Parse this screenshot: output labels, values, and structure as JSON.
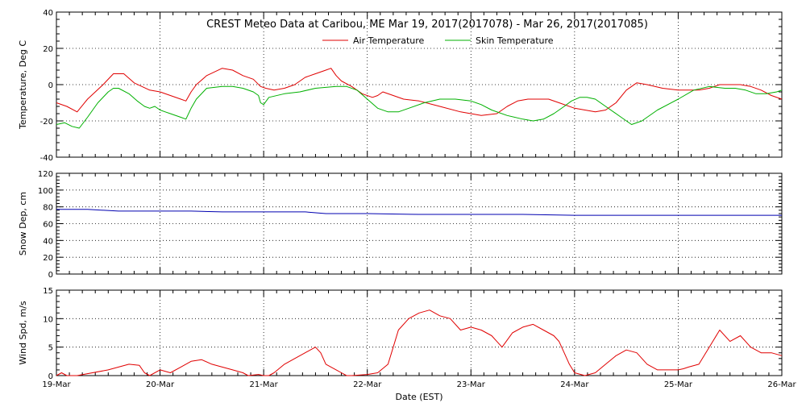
{
  "title": "CREST Meteo Data at Caribou, ME   Mar 19, 2017(2017078) - Mar 26, 2017(2017085)",
  "x_axis": {
    "label": "Date (EST)",
    "ticks": [
      "19-Mar",
      "20-Mar",
      "21-Mar",
      "22-Mar",
      "23-Mar",
      "24-Mar",
      "25-Mar",
      "26-Mar"
    ]
  },
  "colors": {
    "air": "#e00000",
    "skin": "#00b000",
    "snow": "#0000b0",
    "wind": "#e00000",
    "axis": "#000000"
  },
  "chart_data": [
    {
      "type": "line",
      "ylabel": "Temperature, Deg C",
      "ylim": [
        -40,
        40
      ],
      "yticks": [
        -40,
        -20,
        0,
        20,
        40
      ],
      "xlim": [
        0,
        7
      ],
      "grid": true,
      "legend": "top-center",
      "series": [
        {
          "name": "Air Temperature",
          "color": "#e00000",
          "x": [
            0,
            0.1,
            0.2,
            0.3,
            0.45,
            0.55,
            0.65,
            0.75,
            0.9,
            1.0,
            1.1,
            1.2,
            1.25,
            1.3,
            1.35,
            1.45,
            1.6,
            1.7,
            1.8,
            1.9,
            1.97,
            2.02,
            2.1,
            2.2,
            2.3,
            2.4,
            2.5,
            2.6,
            2.65,
            2.7,
            2.75,
            2.85,
            2.95,
            3.05,
            3.1,
            3.15,
            3.25,
            3.35,
            3.5,
            3.7,
            3.9,
            4.1,
            4.25,
            4.35,
            4.45,
            4.55,
            4.65,
            4.75,
            4.85,
            5.0,
            5.1,
            5.2,
            5.3,
            5.4,
            5.5,
            5.6,
            5.7,
            5.85,
            6.0,
            6.1,
            6.2,
            6.3,
            6.4,
            6.5,
            6.6,
            6.7,
            6.8,
            6.9,
            7.0
          ],
          "y": [
            -10,
            -12,
            -15,
            -8,
            0,
            6,
            6,
            1,
            -3,
            -4,
            -6,
            -8,
            -9,
            -4,
            0,
            5,
            9,
            8,
            5,
            3,
            -1,
            -2,
            -3,
            -2,
            0,
            4,
            6,
            8,
            9,
            5,
            2,
            -1,
            -5,
            -7,
            -6,
            -4,
            -6,
            -8,
            -9,
            -12,
            -15,
            -17,
            -16,
            -12,
            -9,
            -8,
            -8,
            -8,
            -10,
            -13,
            -14,
            -15,
            -14,
            -10,
            -3,
            1,
            0,
            -2,
            -3,
            -3,
            -3,
            -2,
            0,
            0,
            0,
            -1,
            -3,
            -6,
            -8
          ]
        },
        {
          "name": "Skin Temperature",
          "color": "#00b000",
          "x": [
            0,
            0.08,
            0.15,
            0.22,
            0.3,
            0.4,
            0.5,
            0.55,
            0.6,
            0.7,
            0.78,
            0.85,
            0.9,
            0.95,
            1.0,
            1.05,
            1.1,
            1.2,
            1.25,
            1.3,
            1.35,
            1.45,
            1.6,
            1.7,
            1.8,
            1.9,
            1.95,
            1.97,
            2.0,
            2.05,
            2.2,
            2.35,
            2.5,
            2.7,
            2.8,
            2.9,
            3.0,
            3.1,
            3.2,
            3.3,
            3.4,
            3.55,
            3.7,
            3.85,
            4.0,
            4.1,
            4.2,
            4.35,
            4.5,
            4.6,
            4.7,
            4.8,
            4.9,
            4.97,
            5.05,
            5.12,
            5.2,
            5.3,
            5.45,
            5.55,
            5.65,
            5.8,
            6.0,
            6.15,
            6.3,
            6.45,
            6.55,
            6.65,
            6.75,
            6.85,
            6.95,
            7.0
          ],
          "y": [
            -22,
            -21,
            -23,
            -24,
            -18,
            -10,
            -4,
            -2,
            -2,
            -5,
            -9,
            -12,
            -13,
            -12,
            -14,
            -15,
            -16,
            -18,
            -19,
            -13,
            -8,
            -2,
            -1,
            -1,
            -2,
            -4,
            -6,
            -10,
            -11,
            -7,
            -5,
            -4,
            -2,
            -1,
            -1,
            -3,
            -8,
            -13,
            -15,
            -15,
            -13,
            -10,
            -8,
            -8,
            -9,
            -11,
            -14,
            -17,
            -19,
            -20,
            -19,
            -16,
            -12,
            -9,
            -7,
            -7,
            -8,
            -12,
            -18,
            -22,
            -20,
            -14,
            -8,
            -3,
            -1,
            -2,
            -2,
            -3,
            -5,
            -5,
            -4,
            -3
          ]
        }
      ]
    },
    {
      "type": "line",
      "ylabel": "Snow Dep, cm",
      "ylim": [
        0,
        120
      ],
      "yticks": [
        0,
        20,
        40,
        60,
        80,
        100,
        120
      ],
      "xlim": [
        0,
        7
      ],
      "grid": true,
      "series": [
        {
          "color": "#0000b0",
          "x": [
            0,
            0.3,
            0.6,
            1.0,
            1.3,
            1.6,
            2.0,
            2.4,
            2.6,
            3.0,
            3.5,
            4.0,
            4.5,
            5.0,
            5.5,
            6.0,
            6.5,
            7.0
          ],
          "y": [
            77,
            77,
            75,
            75,
            75,
            74,
            74,
            74,
            72,
            72,
            71,
            71,
            71,
            70,
            70,
            70,
            70,
            70
          ]
        }
      ]
    },
    {
      "type": "line",
      "ylabel": "Wind Spd, m/s",
      "ylim": [
        0,
        15
      ],
      "yticks": [
        0,
        5,
        10,
        15
      ],
      "xlim": [
        0,
        7
      ],
      "grid": true,
      "series": [
        {
          "color": "#e00000",
          "x": [
            0,
            0.05,
            0.1,
            0.2,
            0.5,
            0.6,
            0.7,
            0.8,
            0.85,
            0.9,
            1.0,
            1.1,
            1.2,
            1.3,
            1.4,
            1.5,
            1.6,
            1.7,
            1.8,
            1.85,
            1.95,
            2.0,
            2.05,
            2.1,
            2.2,
            2.3,
            2.4,
            2.45,
            2.5,
            2.55,
            2.6,
            2.7,
            2.75,
            2.8,
            2.85,
            3.0,
            3.1,
            3.2,
            3.25,
            3.3,
            3.4,
            3.5,
            3.6,
            3.7,
            3.8,
            3.9,
            4.0,
            4.1,
            4.2,
            4.25,
            4.3,
            4.4,
            4.5,
            4.6,
            4.7,
            4.8,
            4.85,
            4.9,
            4.95,
            5.0,
            5.1,
            5.2,
            5.3,
            5.4,
            5.5,
            5.6,
            5.7,
            5.8,
            5.9,
            6.0,
            6.05,
            6.1,
            6.2,
            6.3,
            6.4,
            6.5,
            6.6,
            6.7,
            6.8,
            6.9,
            7.0
          ],
          "y": [
            0,
            0.5,
            0,
            0,
            1,
            1.5,
            2,
            1.8,
            0.5,
            0,
            1,
            0.5,
            1.5,
            2.5,
            2.8,
            2,
            1.5,
            1,
            0.5,
            0,
            0.2,
            0,
            0,
            0.5,
            2,
            3,
            4,
            4.5,
            5,
            4,
            2,
            1,
            0.5,
            0,
            0,
            0.2,
            0.5,
            2,
            5,
            8,
            10,
            11,
            11.5,
            10.5,
            10,
            8,
            8.5,
            8,
            7,
            6,
            5,
            7.5,
            8.5,
            9,
            8,
            7,
            6,
            4,
            2,
            0.5,
            0,
            0.5,
            2,
            3.5,
            4.5,
            4,
            2,
            1,
            1,
            1,
            1.2,
            1.5,
            2,
            5,
            8,
            6,
            7,
            5,
            4,
            4,
            3.5
          ]
        }
      ]
    }
  ]
}
